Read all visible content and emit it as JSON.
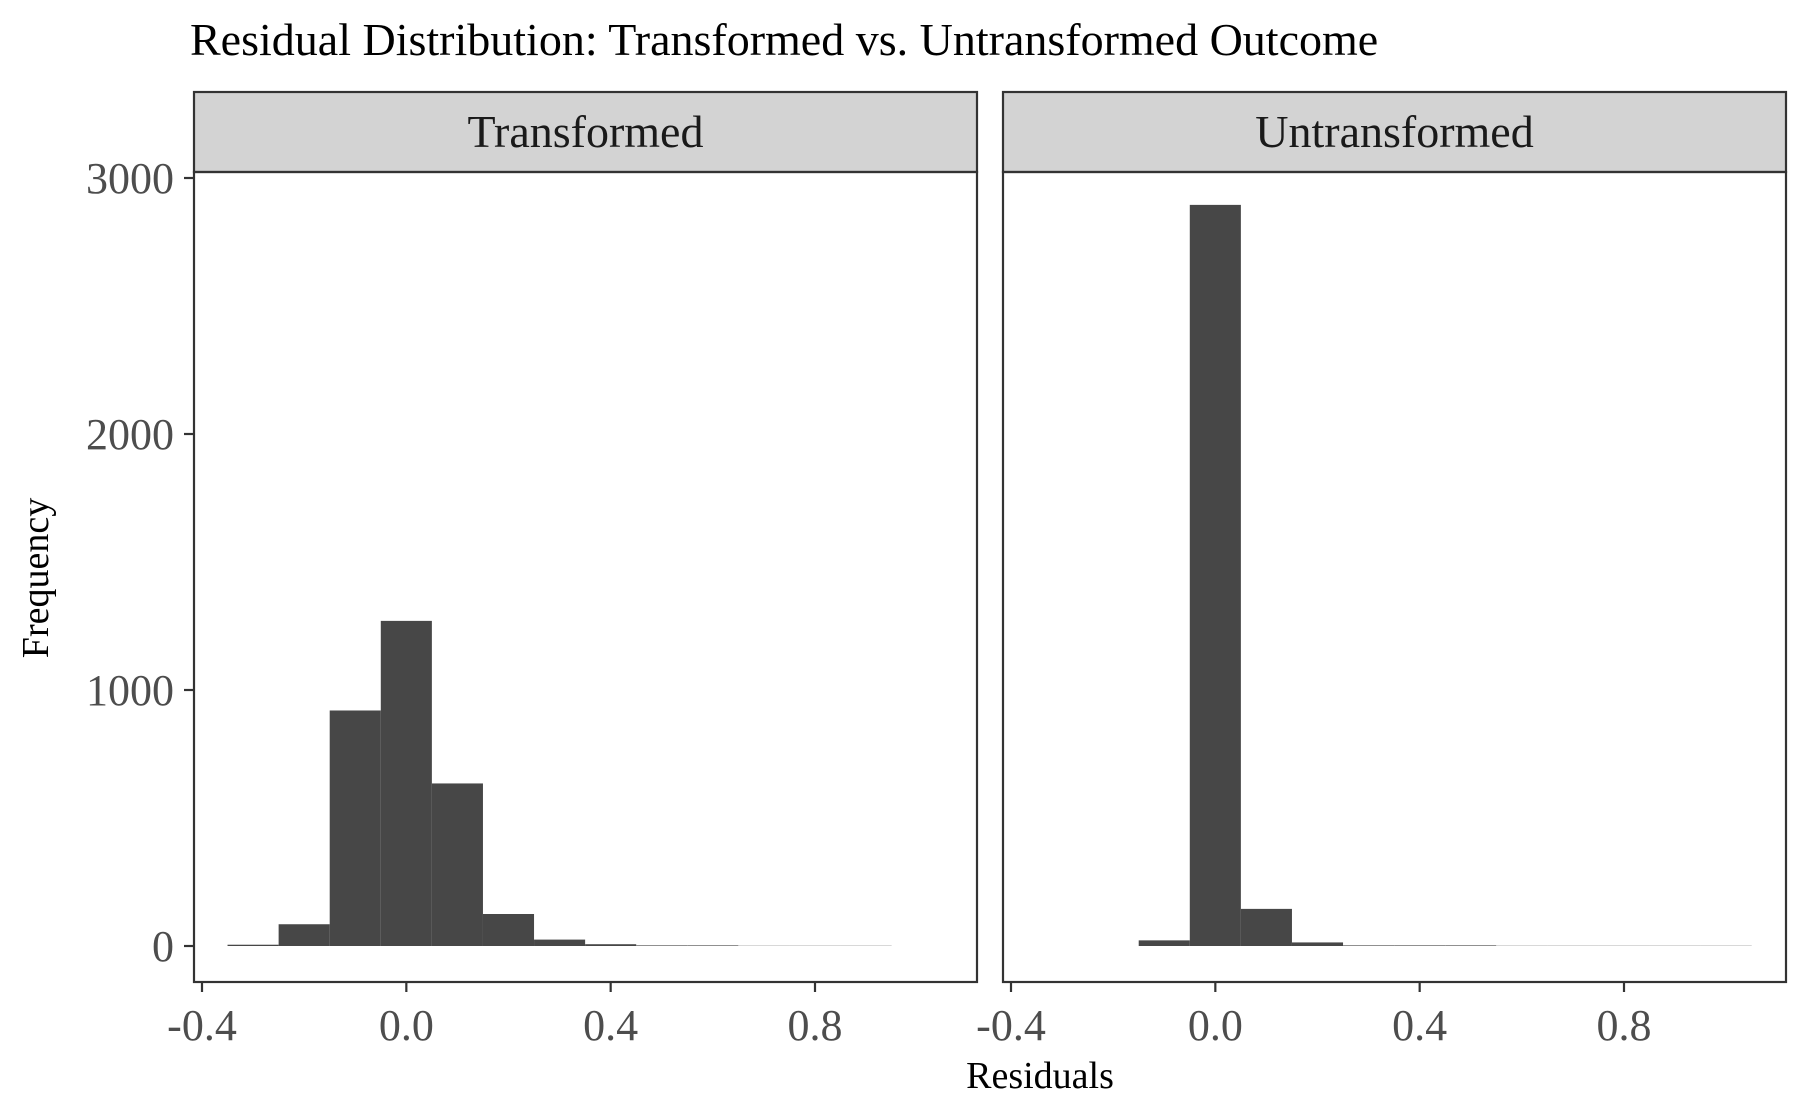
{
  "chart_data": {
    "type": "bar",
    "title": "Residual Distribution: Transformed vs. Untransformed Outcome",
    "xlabel": "Residuals",
    "ylabel": "Frequency",
    "xlim": [
      -0.42,
      1.1
    ],
    "ylim": [
      -130,
      3050
    ],
    "x_ticks": [
      -0.4,
      0.0,
      0.4,
      0.8
    ],
    "x_tick_labels": [
      "-0.4",
      "0.0",
      "0.4",
      "0.8"
    ],
    "y_ticks": [
      0,
      1000,
      2000,
      3000
    ],
    "y_tick_labels": [
      "0",
      "1000",
      "2000",
      "3000"
    ],
    "bin_width": 0.1,
    "grid": false,
    "bar_color": "#474747",
    "strip_color": "#d3d3d3",
    "panels": [
      {
        "name": "Transformed",
        "bins": [
          {
            "x": -0.3,
            "count": 5
          },
          {
            "x": -0.2,
            "count": 85
          },
          {
            "x": -0.1,
            "count": 920
          },
          {
            "x": 0.0,
            "count": 1270
          },
          {
            "x": 0.1,
            "count": 635
          },
          {
            "x": 0.2,
            "count": 125
          },
          {
            "x": 0.3,
            "count": 25
          },
          {
            "x": 0.4,
            "count": 7
          },
          {
            "x": 0.5,
            "count": 2
          },
          {
            "x": 0.6,
            "count": 1
          },
          {
            "x": 0.7,
            "count": 0
          },
          {
            "x": 0.8,
            "count": 0.5
          },
          {
            "x": 0.9,
            "count": 0.5
          }
        ]
      },
      {
        "name": "Untransformed",
        "bins": [
          {
            "x": -0.1,
            "count": 22
          },
          {
            "x": 0.0,
            "count": 2895
          },
          {
            "x": 0.1,
            "count": 145
          },
          {
            "x": 0.2,
            "count": 14
          },
          {
            "x": 0.3,
            "count": 2
          },
          {
            "x": 0.4,
            "count": 1
          },
          {
            "x": 0.5,
            "count": 1
          },
          {
            "x": 0.6,
            "count": 0
          },
          {
            "x": 0.7,
            "count": 0
          },
          {
            "x": 0.8,
            "count": 0
          },
          {
            "x": 0.9,
            "count": 0.5
          },
          {
            "x": 1.0,
            "count": 0.5
          }
        ]
      }
    ]
  }
}
